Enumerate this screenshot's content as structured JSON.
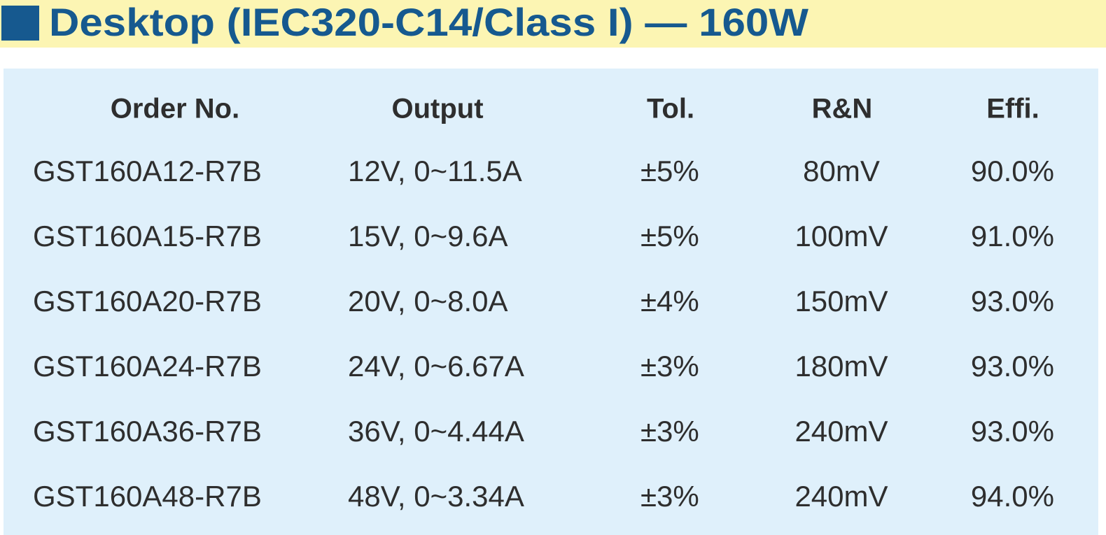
{
  "header": {
    "title": "Desktop (IEC320-C14/Class I) — 160W"
  },
  "table": {
    "columns": [
      "Order No.",
      "Output",
      "Tol.",
      "R&N",
      "Effi."
    ],
    "rows": [
      [
        "GST160A12-R7B",
        "12V, 0~11.5A",
        "±5%",
        "80mV",
        "90.0%"
      ],
      [
        "GST160A15-R7B",
        "15V, 0~9.6A",
        "±5%",
        "100mV",
        "91.0%"
      ],
      [
        "GST160A20-R7B",
        "20V, 0~8.0A",
        "±4%",
        "150mV",
        "93.0%"
      ],
      [
        "GST160A24-R7B",
        "24V, 0~6.67A",
        "±3%",
        "180mV",
        "93.0%"
      ],
      [
        "GST160A36-R7B",
        "36V, 0~4.44A",
        "±3%",
        "240mV",
        "93.0%"
      ],
      [
        "GST160A48-R7B",
        "48V, 0~3.34A",
        "±3%",
        "240mV",
        "94.0%"
      ]
    ]
  }
}
